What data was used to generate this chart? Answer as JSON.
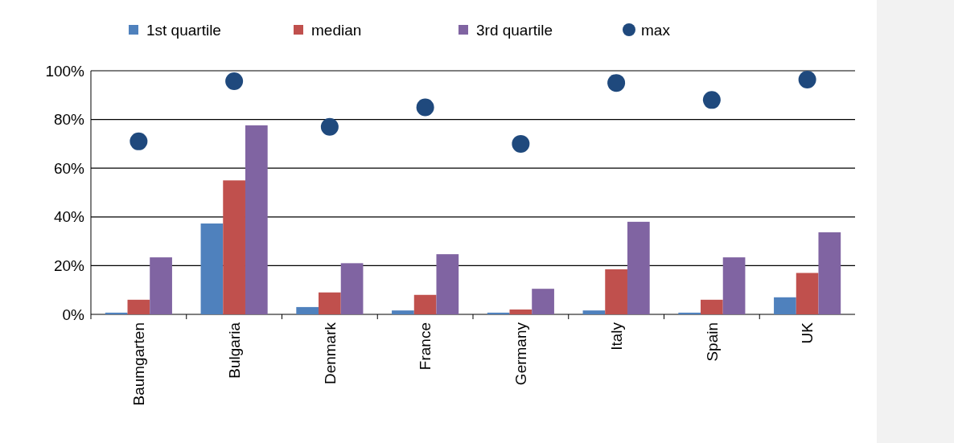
{
  "chart_data": {
    "type": "bar",
    "categories": [
      "Baumgarten",
      "Bulgaria",
      "Denmark",
      "France",
      "Germany",
      "Italy",
      "Spain",
      "UK"
    ],
    "series": [
      {
        "name": "1st quartile",
        "color": "#4f81bd",
        "values": [
          0.7,
          37.3,
          3,
          1.6,
          0.7,
          1.6,
          0.7,
          7
        ]
      },
      {
        "name": "median",
        "color": "#c0504d",
        "values": [
          6,
          55,
          9,
          8,
          2,
          18.5,
          6,
          17
        ]
      },
      {
        "name": "3rd quartile",
        "color": "#8064a2",
        "values": [
          23.4,
          77.6,
          21,
          24.7,
          10.5,
          38,
          23.4,
          33.7
        ]
      },
      {
        "name": "max",
        "type": "scatter",
        "marker": "circle",
        "color": "#1f497d",
        "x": [
          "Baumgarten",
          "Bulgaria",
          "Denmark",
          "France",
          "Germany",
          "Italy",
          "Spain",
          "UK"
        ],
        "values": [
          71,
          95.7,
          77,
          85,
          70,
          95,
          88,
          96.4
        ]
      }
    ],
    "ylim": [
      0,
      100
    ],
    "yticks": [
      {
        "value": 0,
        "label": "0%"
      },
      {
        "value": 20,
        "label": "20%"
      },
      {
        "value": 40,
        "label": "40%"
      },
      {
        "value": 60,
        "label": "60%"
      },
      {
        "value": 80,
        "label": "80%"
      },
      {
        "value": 100,
        "label": "100%"
      }
    ],
    "grid": "y",
    "legend": "top"
  }
}
